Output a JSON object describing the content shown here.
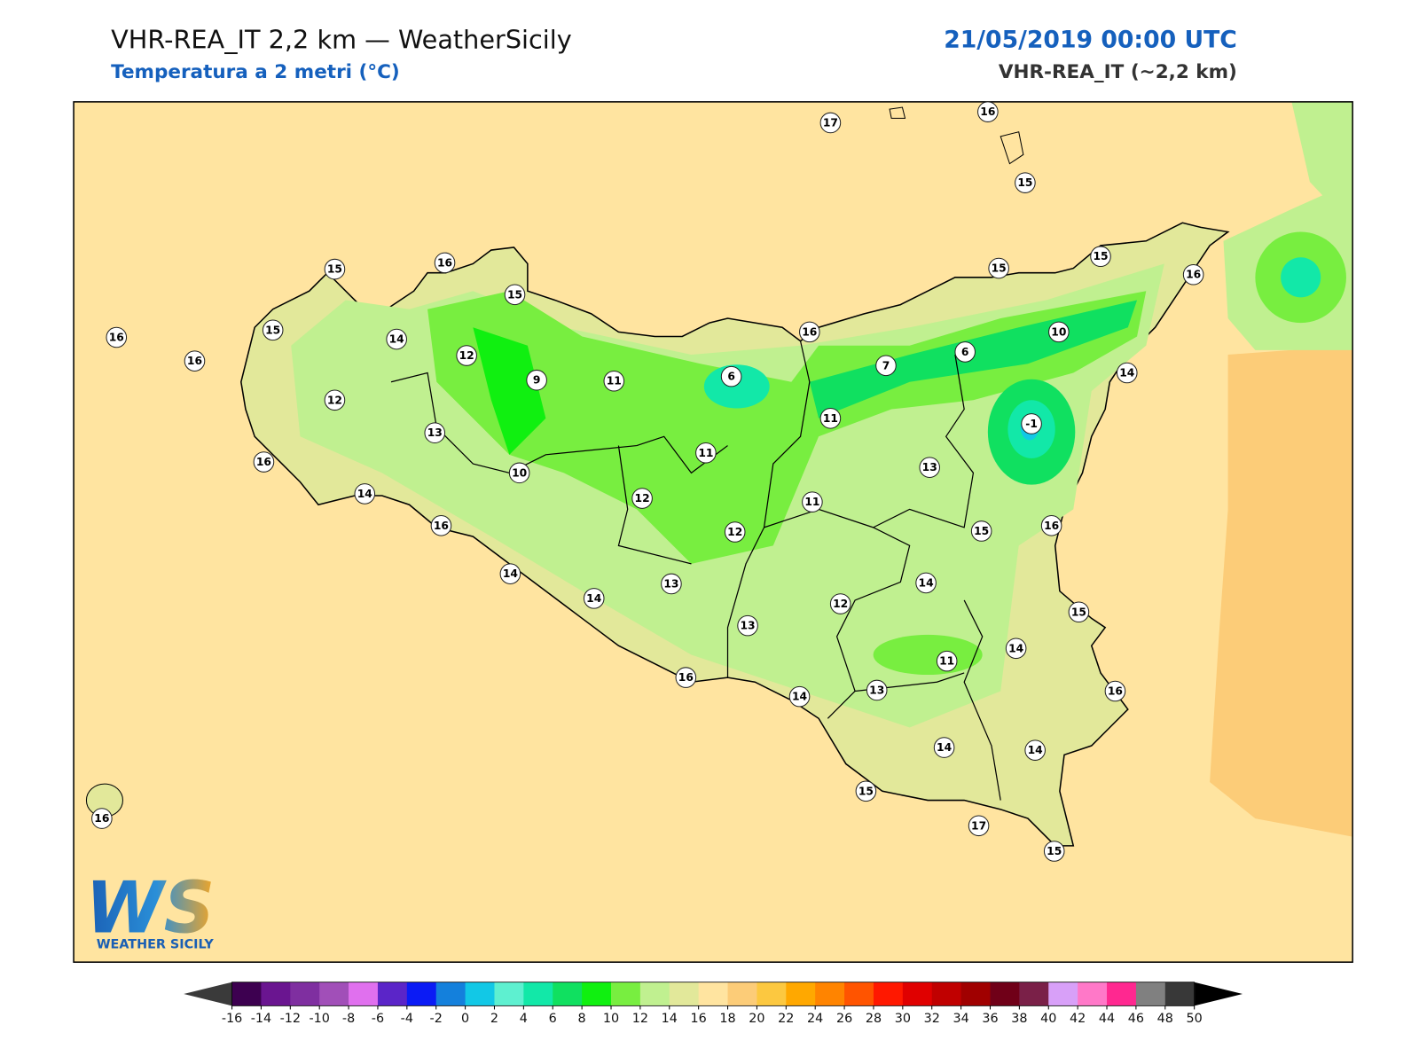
{
  "header": {
    "title": "VHR-REA_IT 2,2 km — WeatherSicily",
    "subtitle": "Temperatura a 2 metri (°C)",
    "date": "21/05/2019 00:00 UTC",
    "model": "VHR-REA_IT (~2,2 km)"
  },
  "stations": [
    17,
    16,
    15,
    15,
    16,
    15,
    15,
    15,
    16,
    16,
    15,
    14,
    16,
    12,
    16,
    10,
    6,
    7,
    9,
    11,
    6,
    14,
    12,
    11,
    -1,
    13,
    11,
    16,
    13,
    10,
    14,
    12,
    11,
    16,
    15,
    16,
    12,
    14,
    13,
    14,
    14,
    12,
    15,
    13,
    14,
    11,
    16,
    13,
    14,
    16,
    14,
    14,
    15,
    17,
    15,
    16
  ],
  "colorbar": {
    "ticks": [
      -16,
      -14,
      -12,
      -10,
      -8,
      -6,
      -4,
      -2,
      0,
      2,
      4,
      6,
      8,
      10,
      12,
      14,
      16,
      18,
      20,
      22,
      24,
      26,
      28,
      30,
      32,
      34,
      36,
      38,
      40,
      42,
      44,
      46,
      48,
      50
    ],
    "colors": [
      "#3d0050",
      "#6a1590",
      "#7f2fa0",
      "#a14fb8",
      "#e070ee",
      "#5b25c8",
      "#0b1bf5",
      "#1480dc",
      "#12c8e6",
      "#5ef0d0",
      "#12e8a8",
      "#10e060",
      "#10f010",
      "#78ee40",
      "#c0f090",
      "#e2e89a",
      "#ffe4a0",
      "#fccc78",
      "#fcc840",
      "#ffa800",
      "#ff8400",
      "#ff5400",
      "#ff1800",
      "#e00000",
      "#c00000",
      "#a00000",
      "#700018",
      "#7a2048",
      "#d8a0f8",
      "#ff78c8",
      "#ff2890",
      "#808080",
      "#383838"
    ],
    "under_color": "#3a3a3a",
    "over_color": "#000000"
  },
  "logo": {
    "mark": "WS",
    "text": "WEATHER SICILY"
  }
}
